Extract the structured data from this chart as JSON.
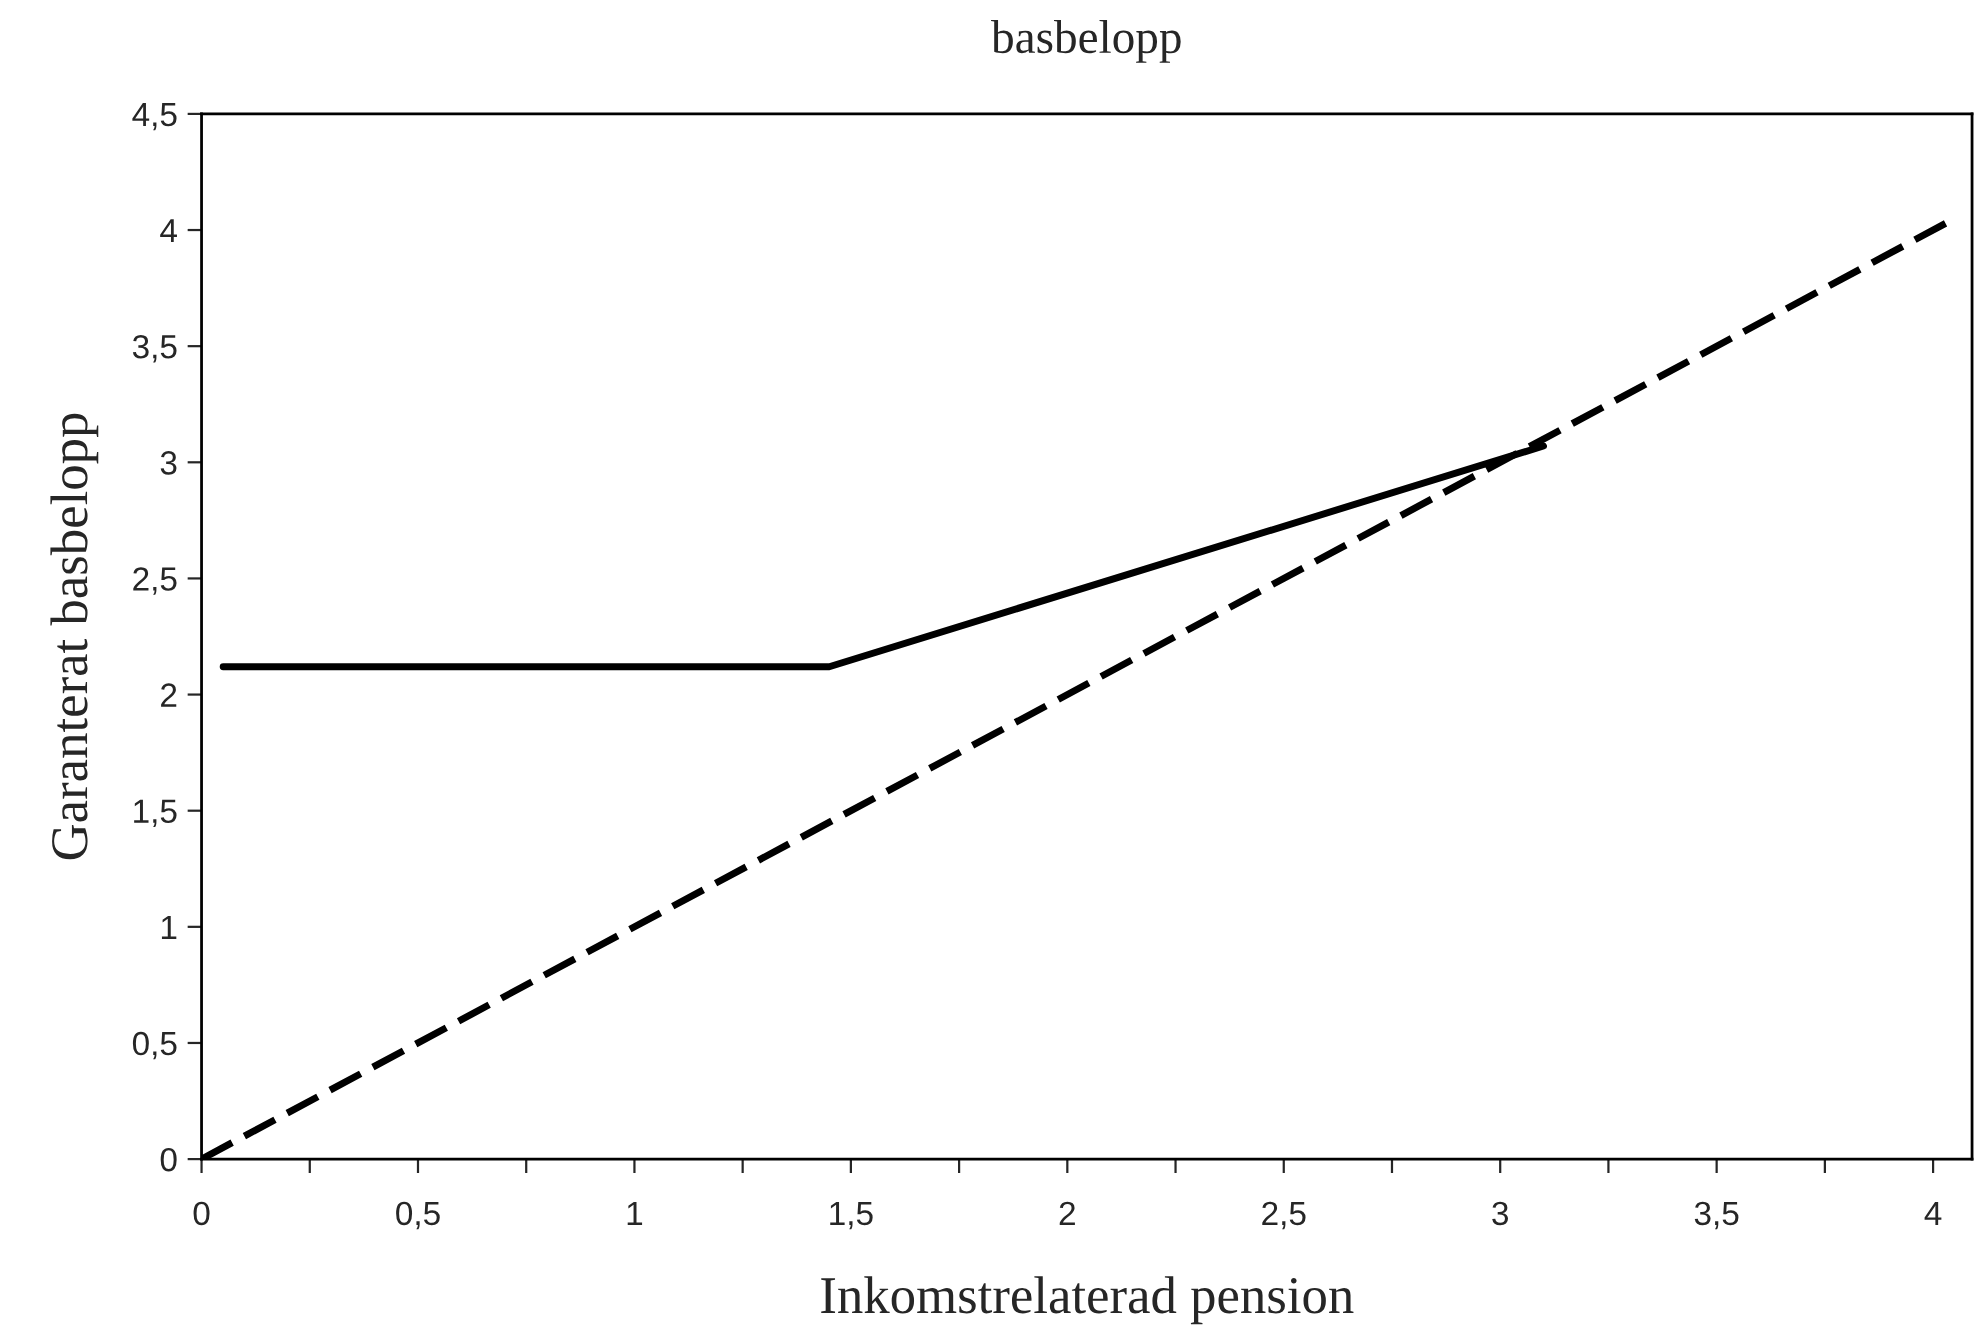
{
  "chart_data": {
    "type": "line",
    "title": "basbelopp",
    "xlabel": "Inkomstrelaterad pension",
    "ylabel": "Garanterat basbelopp",
    "series": [
      {
        "color": "#000000",
        "line_style": "solid",
        "x": [
          0.05,
          1.45,
          3.1
        ],
        "values": [
          2.12,
          2.12,
          3.07
        ]
      },
      {
        "color": "#000000",
        "line_style": "dashed",
        "x": [
          0,
          4.05
        ],
        "values": [
          0,
          4.05
        ]
      }
    ],
    "xlim": [
      0,
      4.09
    ],
    "ylim": [
      0,
      4.5
    ],
    "xticks": [
      0,
      {
        "value": 0.25,
        "label": null
      },
      {
        "value": 0.5,
        "label": "0,5"
      },
      {
        "value": 0.75,
        "label": null
      },
      1,
      {
        "value": 1.25,
        "label": null
      },
      {
        "value": 1.5,
        "label": "1,5"
      },
      {
        "value": 1.75,
        "label": null
      },
      2,
      {
        "value": 2.25,
        "label": null
      },
      {
        "value": 2.5,
        "label": "2,5"
      },
      {
        "value": 2.75,
        "label": null
      },
      3,
      {
        "value": 3.25,
        "label": null
      },
      {
        "value": 3.5,
        "label": "3,5"
      },
      {
        "value": 3.75,
        "label": null
      },
      4
    ],
    "yticks": [
      0,
      {
        "value": 0.5,
        "label": "0,5"
      },
      1,
      {
        "value": 1.5,
        "label": "1,5"
      },
      2,
      {
        "value": 2.5,
        "label": "2,5"
      },
      3,
      {
        "value": 3.5,
        "label": "3,5"
      },
      4,
      {
        "value": 4.5,
        "label": "4,5"
      }
    ],
    "grid": false,
    "marker": "none"
  }
}
